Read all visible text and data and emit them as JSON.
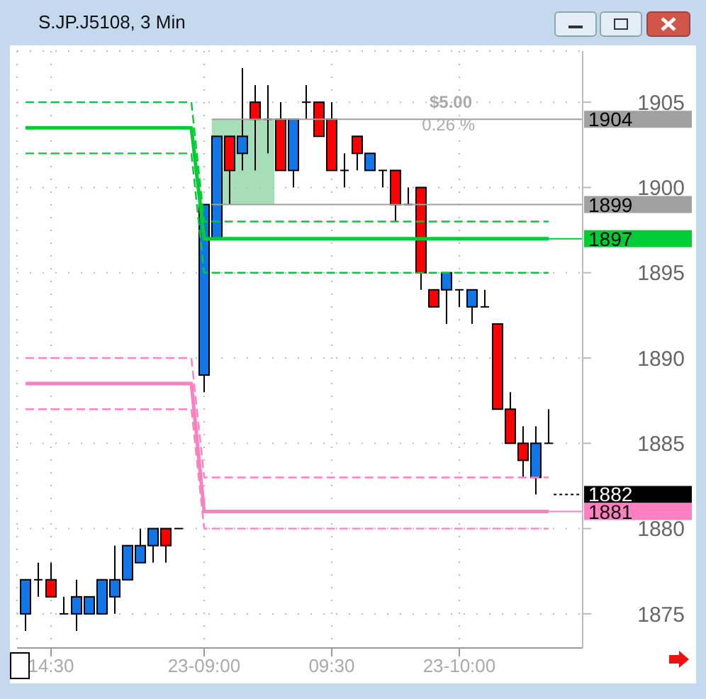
{
  "chart_data": {
    "type": "candlestick",
    "title": "S.JP.J5108, 3 Min",
    "categories": [
      null,
      null,
      "14:30",
      null,
      null,
      null,
      null,
      null,
      null,
      null,
      null,
      null,
      null,
      null,
      "23-09:00",
      null,
      null,
      null,
      null,
      null,
      null,
      null,
      null,
      null,
      "09:30",
      null,
      null,
      null,
      null,
      null,
      null,
      null,
      null,
      null,
      "23-10:00",
      null,
      null,
      null,
      null,
      null,
      null,
      null
    ],
    "ohlc": [
      [
        1875,
        1877,
        1874,
        1877
      ],
      [
        1877,
        1878,
        1876,
        1877
      ],
      [
        1877,
        1878,
        1876,
        1876
      ],
      [
        1875,
        1876,
        1875,
        1875
      ],
      [
        1875,
        1877,
        1874,
        1876
      ],
      [
        1875,
        1876,
        1875,
        1876
      ],
      [
        1875,
        1877,
        1875,
        1877
      ],
      [
        1876,
        1879,
        1875,
        1877
      ],
      [
        1877,
        1879,
        1877,
        1879
      ],
      [
        1878,
        1880,
        1878,
        1879
      ],
      [
        1879,
        1880,
        1878,
        1880
      ],
      [
        1880,
        1880,
        1878,
        1879
      ],
      [
        1880,
        1880,
        1880,
        1880
      ],
      null,
      [
        1889,
        1899,
        1888,
        1899
      ],
      [
        1897,
        1903,
        1897,
        1903
      ],
      [
        1903,
        1903,
        1899,
        1901
      ],
      [
        1902,
        1907,
        1901,
        1903
      ],
      [
        1905,
        1906,
        1901,
        1904
      ],
      [
        1904,
        1906,
        1902,
        1904
      ],
      [
        1904,
        1905,
        1901,
        1901
      ],
      [
        1901,
        1904,
        1900,
        1904
      ],
      [
        1905,
        1906,
        1904,
        1905
      ],
      [
        1905,
        1905,
        1903,
        1903
      ],
      [
        1904,
        1905,
        1901,
        1901
      ],
      [
        1901,
        1902,
        1900,
        1901
      ],
      [
        1903,
        1903,
        1901,
        1902
      ],
      [
        1901,
        1902,
        1901,
        1902
      ],
      [
        1901,
        1901,
        1900,
        1901
      ],
      [
        1901,
        1901,
        1898,
        1899
      ],
      [
        1899,
        1900,
        1899,
        1899
      ],
      [
        1900,
        1900,
        1894,
        1895
      ],
      [
        1894,
        1894,
        1893,
        1893
      ],
      [
        1894,
        1895,
        1892,
        1895
      ],
      [
        1894,
        1894,
        1893,
        1894
      ],
      [
        1893,
        1894,
        1892,
        1894
      ],
      [
        1893,
        1894,
        1893,
        1893
      ],
      [
        1892,
        1892,
        1887,
        1887
      ],
      [
        1887,
        1888,
        1885,
        1885
      ],
      [
        1885,
        1886,
        1883,
        1884
      ],
      [
        1883,
        1886,
        1882,
        1885
      ],
      [
        1885,
        1887,
        1885,
        1885
      ]
    ],
    "colors": [
      "#1177e8",
      "#000000",
      "#ff0000",
      "#000000",
      "#1177e8",
      "#1177e8",
      "#1177e8",
      "#1177e8",
      "#1177e8",
      "#1177e8",
      "#1177e8",
      "#ff0000",
      "#000000",
      null,
      "#1177e8",
      "#1177e8",
      "#ff0000",
      "#1177e8",
      "#ff0000",
      "#000000",
      "#ff0000",
      "#1177e8",
      "#000000",
      "#ff0000",
      "#ff0000",
      "#000000",
      "#ff0000",
      "#1177e8",
      "#000000",
      "#ff0000",
      "#000000",
      "#ff0000",
      "#ff0000",
      "#1177e8",
      "#000000",
      "#1177e8",
      "#000000",
      "#ff0000",
      "#ff0000",
      "#ff0000",
      "#1177e8",
      "#000000"
    ],
    "series": [
      {
        "type": "line",
        "color": "#00cc33",
        "line_style": "solid",
        "values": [
          1903.5,
          1903.5,
          1903.5,
          1903.5,
          1903.5,
          1903.5,
          1903.5,
          1903.5,
          1903.5,
          1903.5,
          1903.5,
          1903.5,
          1903.5,
          1903.5,
          1897,
          1897,
          1897,
          1897,
          1897,
          1897,
          1897,
          1897,
          1897,
          1897,
          1897,
          1897,
          1897,
          1897,
          1897,
          1897,
          1897,
          1897,
          1897,
          1897,
          1897,
          1897,
          1897,
          1897,
          1897,
          1897,
          1897,
          1897
        ]
      },
      {
        "type": "line",
        "color": "#00cc33",
        "line_style": "dashed",
        "values": [
          1905,
          1905,
          1905,
          1905,
          1905,
          1905,
          1905,
          1905,
          1905,
          1905,
          1905,
          1905,
          1905,
          1905,
          1898,
          1898,
          1898,
          1898,
          1898,
          1898,
          1898,
          1898,
          1898,
          1898,
          1898,
          1898,
          1898,
          1898,
          1898,
          1898,
          1898,
          1898,
          1898,
          1898,
          1898,
          1898,
          1898,
          1898,
          1898,
          1898,
          1898,
          1898
        ]
      },
      {
        "type": "line",
        "color": "#00cc33",
        "line_style": "dashed",
        "values": [
          1902,
          1902,
          1902,
          1902,
          1902,
          1902,
          1902,
          1902,
          1902,
          1902,
          1902,
          1902,
          1902,
          1902,
          1895,
          1895,
          1895,
          1895,
          1895,
          1895,
          1895,
          1895,
          1895,
          1895,
          1895,
          1895,
          1895,
          1895,
          1895,
          1895,
          1895,
          1895,
          1895,
          1895,
          1895,
          1895,
          1895,
          1895,
          1895,
          1895,
          1895,
          1895
        ]
      },
      {
        "type": "line",
        "color": "#ff80c0",
        "line_style": "solid",
        "values": [
          1888.5,
          1888.5,
          1888.5,
          1888.5,
          1888.5,
          1888.5,
          1888.5,
          1888.5,
          1888.5,
          1888.5,
          1888.5,
          1888.5,
          1888.5,
          1888.5,
          1881,
          1881,
          1881,
          1881,
          1881,
          1881,
          1881,
          1881,
          1881,
          1881,
          1881,
          1881,
          1881,
          1881,
          1881,
          1881,
          1881,
          1881,
          1881,
          1881,
          1881,
          1881,
          1881,
          1881,
          1881,
          1881,
          1881,
          1881
        ]
      },
      {
        "type": "line",
        "color": "#ff80c0",
        "line_style": "dashed",
        "values": [
          1890,
          1890,
          1890,
          1890,
          1890,
          1890,
          1890,
          1890,
          1890,
          1890,
          1890,
          1890,
          1890,
          1890,
          1883,
          1883,
          1883,
          1883,
          1883,
          1883,
          1883,
          1883,
          1883,
          1883,
          1883,
          1883,
          1883,
          1883,
          1883,
          1883,
          1883,
          1883,
          1883,
          1883,
          1883,
          1883,
          1883,
          1883,
          1883,
          1883,
          1883,
          1883
        ]
      },
      {
        "type": "line",
        "color": "#ff80c0",
        "line_style": "dashed",
        "values": [
          1887,
          1887,
          1887,
          1887,
          1887,
          1887,
          1887,
          1887,
          1887,
          1887,
          1887,
          1887,
          1887,
          1887,
          1880,
          1880,
          1880,
          1880,
          1880,
          1880,
          1880,
          1880,
          1880,
          1880,
          1880,
          1880,
          1880,
          1880,
          1880,
          1880,
          1880,
          1880,
          1880,
          1880,
          1880,
          1880,
          1880,
          1880,
          1880,
          1880,
          1880,
          1880
        ]
      }
    ],
    "ylim": [
      1873,
      1908
    ],
    "yticks": [
      1875,
      1880,
      1885,
      1890,
      1895,
      1900,
      1905
    ],
    "grid": true,
    "ref_lines": [
      {
        "axis": "y",
        "value": 1904,
        "label": "1904",
        "color": "#a0a0a0",
        "line_style": "solid"
      },
      {
        "axis": "y",
        "value": 1899,
        "label": "1899",
        "color": "#a0a0a0",
        "line_style": "solid"
      },
      {
        "axis": "y",
        "value": 1897,
        "label": "1897",
        "color": "#00cc33",
        "line_style": "solid"
      },
      {
        "axis": "y",
        "value": 1882,
        "label": "1882",
        "color": "#000000"
      },
      {
        "axis": "y",
        "value": 1881,
        "label": "1881",
        "color": "#ff80c0",
        "line_style": "solid"
      }
    ],
    "bands": [
      {
        "axis": "y",
        "from": 1899,
        "to": 1904,
        "color": "#8fd6a8"
      }
    ],
    "annotations": [
      "$5.00",
      "0.26 %"
    ]
  }
}
